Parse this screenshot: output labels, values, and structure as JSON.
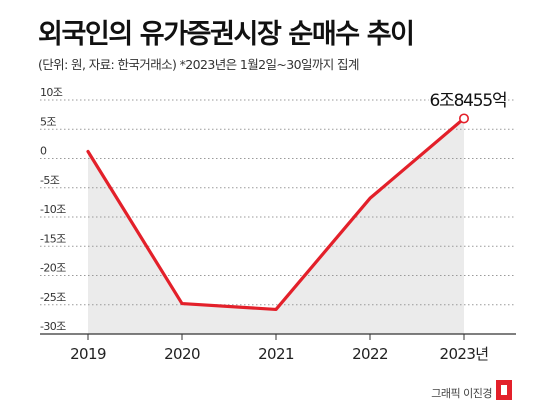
{
  "header": {
    "title": "외국인의 유가증권시장 순매수 추이",
    "subtitle": "(단위: 원, 자료: 한국거래소)  *2023년은 1월2일~30일까지 집계"
  },
  "footer": {
    "credit": "그래픽 이진경"
  },
  "colors": {
    "line": "#e3202a",
    "area": "#ebebeb",
    "axis": "#333333",
    "grid": "#9a9a9a"
  },
  "chart_data": {
    "type": "line",
    "title": "외국인의 유가증권시장 순매수 추이",
    "categories": [
      "2019",
      "2020",
      "2021",
      "2022",
      "2023년"
    ],
    "series": [
      {
        "values": [
          1.2,
          -24.8,
          -25.8,
          -6.8,
          6.8455
        ]
      }
    ],
    "y_ticks": [
      {
        "value": 10,
        "label": "10조"
      },
      {
        "value": 5,
        "label": "5조"
      },
      {
        "value": 0,
        "label": "0"
      },
      {
        "value": -5,
        "label": "-5조"
      },
      {
        "value": -10,
        "label": "-10조"
      },
      {
        "value": -15,
        "label": "-15조"
      },
      {
        "value": -20,
        "label": "-20조"
      },
      {
        "value": -25,
        "label": "-25조"
      },
      {
        "value": -30,
        "label": "-30조"
      }
    ],
    "ylim": [
      -30,
      10
    ],
    "grid": true,
    "annotation": {
      "index": 4,
      "text": "6조8455억"
    }
  }
}
